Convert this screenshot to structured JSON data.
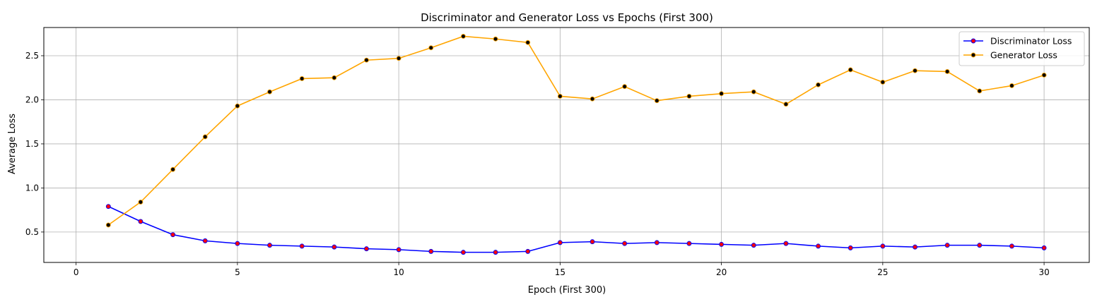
{
  "chart_data": {
    "type": "line",
    "title": "Discriminator and Generator Loss vs Epochs (First 300)",
    "xlabel": "Epoch (First 300)",
    "ylabel": "Average Loss",
    "xlim": [
      -1,
      31.4
    ],
    "ylim": [
      0.155,
      2.82
    ],
    "xticks": [
      0,
      5,
      10,
      15,
      20,
      25,
      30
    ],
    "yticks": [
      0.5,
      1.0,
      1.5,
      2.0,
      2.5
    ],
    "ytick_labels": [
      "0.5",
      "1.0",
      "1.5",
      "2.0",
      "2.5"
    ],
    "grid": true,
    "legend_position": "top-right",
    "x": [
      1,
      2,
      3,
      4,
      5,
      6,
      7,
      8,
      9,
      10,
      11,
      12,
      13,
      14,
      15,
      16,
      17,
      18,
      19,
      20,
      21,
      22,
      23,
      24,
      25,
      26,
      27,
      28,
      29,
      30
    ],
    "series": [
      {
        "name": "Discriminator Loss",
        "color": "#0000ff",
        "marker_color": "#ff0000",
        "values": [
          0.79,
          0.62,
          0.47,
          0.4,
          0.37,
          0.35,
          0.34,
          0.33,
          0.31,
          0.3,
          0.28,
          0.27,
          0.27,
          0.28,
          0.38,
          0.39,
          0.37,
          0.38,
          0.37,
          0.36,
          0.35,
          0.37,
          0.34,
          0.32,
          0.34,
          0.33,
          0.35,
          0.35,
          0.34,
          0.32
        ]
      },
      {
        "name": "Generator Loss",
        "color": "#ffa500",
        "marker_color": "#000000",
        "values": [
          0.58,
          0.84,
          1.21,
          1.58,
          1.93,
          2.09,
          2.24,
          2.25,
          2.45,
          2.47,
          2.59,
          2.72,
          2.69,
          2.65,
          2.04,
          2.01,
          2.15,
          1.99,
          2.04,
          2.07,
          2.09,
          1.95,
          2.17,
          2.34,
          2.2,
          2.33,
          2.32,
          2.1,
          2.16,
          2.28
        ]
      }
    ]
  }
}
